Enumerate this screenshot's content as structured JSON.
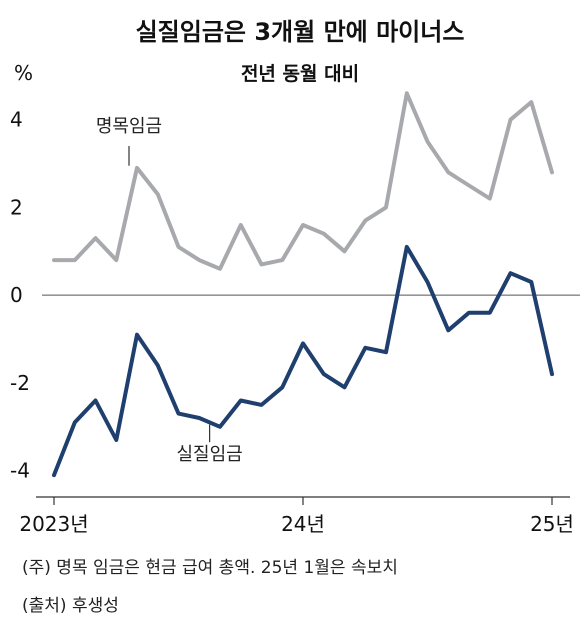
{
  "chart_data": {
    "type": "line",
    "title": "실질임금은 3개월 만에 마이너스",
    "subtitle": "전년 동월 대비",
    "ylabel": "%",
    "ylim": [
      -4.6,
      5.2
    ],
    "yticks": [
      {
        "value": 4,
        "label": "4"
      },
      {
        "value": 2,
        "label": "2"
      },
      {
        "value": 0,
        "label": "0"
      },
      {
        "value": -2,
        "label": "-2"
      },
      {
        "value": -4,
        "label": "-4"
      }
    ],
    "xticks": [
      {
        "index": 0,
        "label": "2023년"
      },
      {
        "index": 12,
        "label": "24년"
      },
      {
        "index": 24,
        "label": "25년"
      }
    ],
    "zero_line": true,
    "grid": false,
    "series": [
      {
        "name": "명목임금",
        "color": "#a7a9ac",
        "values": [
          0.8,
          0.8,
          1.3,
          0.8,
          2.9,
          2.3,
          1.1,
          0.8,
          0.6,
          1.6,
          0.7,
          0.8,
          1.6,
          1.4,
          1.0,
          1.7,
          2.0,
          4.6,
          3.5,
          2.8,
          2.5,
          2.2,
          4.0,
          4.4,
          2.8
        ]
      },
      {
        "name": "실질임금",
        "color": "#1f3f6e",
        "values": [
          -4.1,
          -2.9,
          -2.4,
          -3.3,
          -0.9,
          -1.6,
          -2.7,
          -2.8,
          -3.0,
          -2.4,
          -2.5,
          -2.1,
          -1.1,
          -1.8,
          -2.1,
          -1.2,
          -1.3,
          1.1,
          0.3,
          -0.8,
          -0.4,
          -0.4,
          0.5,
          0.3,
          -1.8
        ]
      }
    ]
  },
  "notes": {
    "footnote": "(주) 명목 임금은 현금 급여 총액. 25년 1월은 속보치",
    "source": "(출처) 후생성"
  }
}
